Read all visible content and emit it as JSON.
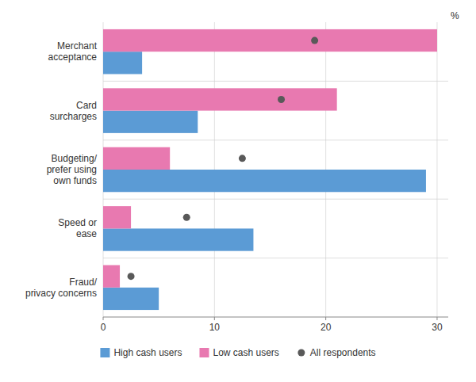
{
  "chart_data": {
    "type": "bar",
    "orientation": "horizontal",
    "categories": [
      "Merchant\nacceptance",
      "Card\nsurcharges",
      "Budgeting/\nprefer using\nown funds",
      "Speed or\nease",
      "Fraud/\nprivacy concerns"
    ],
    "series": [
      {
        "name": "High cash users",
        "color": "#5b9bd5",
        "values": [
          3.5,
          8.5,
          29.0,
          13.5,
          5.0
        ]
      },
      {
        "name": "Low cash users",
        "color": "#e879b0",
        "values": [
          30.0,
          21.0,
          6.0,
          2.5,
          1.5
        ]
      },
      {
        "name": "All respondents",
        "color": "#595959",
        "type": "scatter",
        "marker": "circle",
        "values": [
          19.0,
          16.0,
          12.5,
          7.5,
          2.5
        ]
      }
    ],
    "xlabel": "%",
    "xlim": [
      0,
      31
    ],
    "xticks": [
      0,
      10,
      20,
      30
    ],
    "grid": true,
    "legend": "bottom"
  }
}
